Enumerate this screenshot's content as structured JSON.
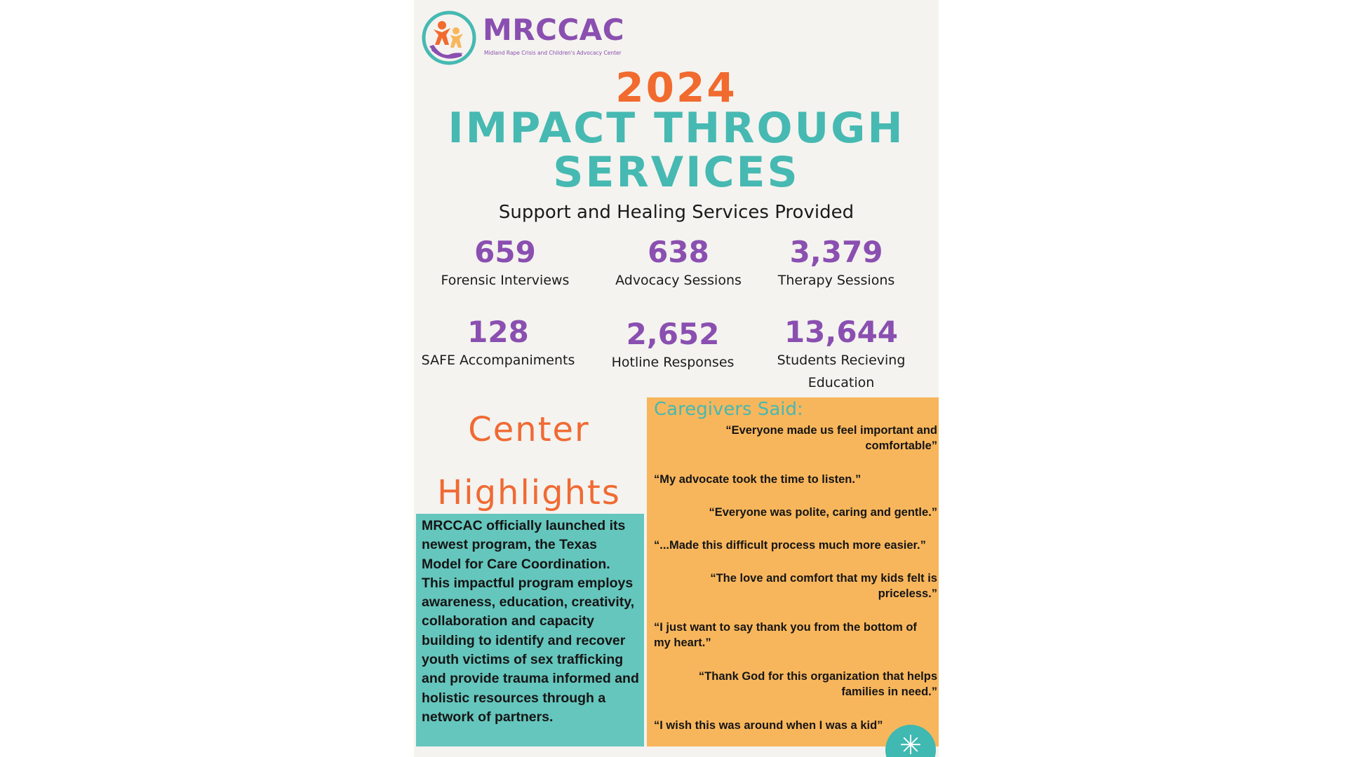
{
  "header": {
    "brand": "MRCCAC",
    "tagline": "Midland Rape Crisis and Children's Advocacy Center"
  },
  "hero": {
    "year": "2024",
    "title": "IMPACT THROUGH SERVICES",
    "subtitle": "Support and Healing Services Provided"
  },
  "stats": [
    {
      "value": "659",
      "label": "Forensic Interviews"
    },
    {
      "value": "638",
      "label": "Advocacy Sessions"
    },
    {
      "value": "3,379",
      "label": "Therapy Sessions"
    },
    {
      "value": "128",
      "label": "SAFE Accompaniments"
    },
    {
      "value": "2,652",
      "label": "Hotline Responses"
    },
    {
      "value": "13,644",
      "label": "Students Recieving Education"
    }
  ],
  "highlights": {
    "heading_line1": "Center",
    "heading_line2": "Highlights",
    "body": "MRCCAC officially launched its newest program, the Texas Model for Care Coordination. This impactful program employs awareness, education, creativity, collaboration and capacity building to identify and recover youth victims of sex trafficking and provide trauma informed and holistic resources through a network of partners."
  },
  "caregivers": {
    "heading": "Caregivers Said:",
    "quotes": [
      "“Everyone made us feel important and comfortable”",
      "“My advocate took the time to listen.”",
      "“Everyone was polite, caring and gentle.”",
      "“...Made this difficult process much more easier.”",
      "“The love and comfort that my kids felt is priceless.”",
      "“I just want to say thank you from the bottom of my heart.”",
      "“Thank God for this organization that helps families in need.”",
      "“I wish this was around when I was a kid”"
    ]
  },
  "colors": {
    "purple": "#8a4fb0",
    "orange": "#f16a2e",
    "teal": "#46b9b2",
    "panel_orange": "#f8b65c",
    "panel_teal": "#65c6bd"
  },
  "icons": [
    "logo-figures-icon",
    "asterisk-badge-icon"
  ]
}
